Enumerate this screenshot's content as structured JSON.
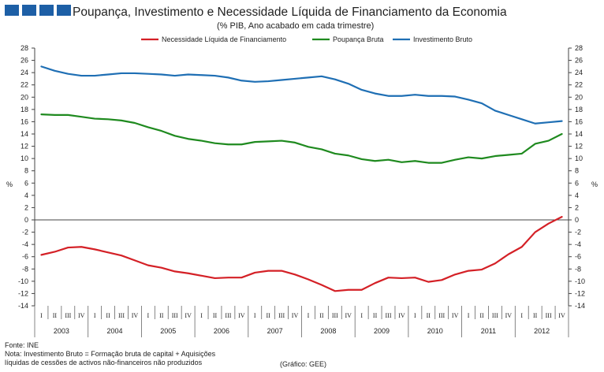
{
  "header": {
    "title": "Poupança, Investimento e Necessidade Líquida de Financiamento da Economia",
    "subtitle": "(% PIB, Ano acabado em cada trimestre)"
  },
  "footer": {
    "source": "Fonte: INE",
    "note_line1": "Nota: Investimento Bruto = Formação bruta de capital + Aquisições",
    "note_line2": "líquidas de cessões de activos não-financeiros não produzidos",
    "credit": "(Gráfico: GEE)"
  },
  "colors": {
    "brand_blocks": "#1d5fa6",
    "necessidade": "#d42026",
    "poupanca": "#1f8a1f",
    "investimento": "#1f6fb4"
  },
  "chart_data": {
    "type": "line",
    "title": "Poupança, Investimento e Necessidade Líquida de Financiamento da Economia",
    "subtitle": "(% PIB, Ano acabado em cada trimestre)",
    "ylabel": "%",
    "ylim": [
      -14,
      28
    ],
    "ytick_step": 2,
    "yticks": [
      "-14",
      "-12",
      "-10",
      "-8",
      "-6",
      "-4",
      "-2",
      "0",
      "2",
      "4",
      "6",
      "8",
      "10",
      "12",
      "14",
      "16",
      "18",
      "20",
      "22",
      "24",
      "26",
      "28"
    ],
    "legend_position": "top-center",
    "quarter_labels": [
      "I",
      "II",
      "III",
      "IV",
      "I",
      "II",
      "III",
      "IV",
      "I",
      "II",
      "III",
      "IV",
      "I",
      "II",
      "III",
      "IV",
      "I",
      "II",
      "III",
      "IV",
      "I",
      "II",
      "III",
      "IV",
      "I",
      "II",
      "III",
      "IV",
      "I",
      "II",
      "III",
      "IV",
      "I",
      "II",
      "III",
      "IV",
      "I",
      "II",
      "III",
      "IV"
    ],
    "years": [
      "2003",
      "2004",
      "2005",
      "2006",
      "2007",
      "2008",
      "2009",
      "2010",
      "2011",
      "2012"
    ],
    "series": [
      {
        "name": "Necessidade Líquida de Financiamento",
        "color_key": "necessidade",
        "values": [
          -5.7,
          -5.2,
          -4.5,
          -4.4,
          -4.8,
          -5.3,
          -5.8,
          -6.6,
          -7.4,
          -7.8,
          -8.4,
          -8.7,
          -9.1,
          -9.5,
          -9.4,
          -9.4,
          -8.6,
          -8.3,
          -8.3,
          -8.9,
          -9.7,
          -10.6,
          -11.6,
          -11.4,
          -11.4,
          -10.3,
          -9.4,
          -9.5,
          -9.4,
          -10.1,
          -9.8,
          -8.9,
          -8.3,
          -8.1,
          -7.1,
          -5.6,
          -4.4,
          -2.0,
          -0.6,
          0.5
        ]
      },
      {
        "name": "Poupança Bruta",
        "color_key": "poupanca",
        "values": [
          17.2,
          17.1,
          17.1,
          16.8,
          16.5,
          16.4,
          16.2,
          15.8,
          15.1,
          14.5,
          13.7,
          13.2,
          12.9,
          12.5,
          12.3,
          12.3,
          12.7,
          12.8,
          12.9,
          12.6,
          11.9,
          11.5,
          10.8,
          10.5,
          9.9,
          9.6,
          9.8,
          9.4,
          9.6,
          9.3,
          9.3,
          9.8,
          10.2,
          10.0,
          10.4,
          10.6,
          10.8,
          12.4,
          12.9,
          14.0
        ]
      },
      {
        "name": "Investimento Bruto",
        "color_key": "investimento",
        "values": [
          25.0,
          24.3,
          23.8,
          23.5,
          23.5,
          23.7,
          23.9,
          23.9,
          23.8,
          23.7,
          23.5,
          23.7,
          23.6,
          23.5,
          23.2,
          22.7,
          22.5,
          22.6,
          22.8,
          23.0,
          23.2,
          23.4,
          22.9,
          22.2,
          21.2,
          20.6,
          20.2,
          20.2,
          20.4,
          20.2,
          20.2,
          20.1,
          19.6,
          19.0,
          17.8,
          17.1,
          16.4,
          15.7,
          15.9,
          16.1
        ]
      }
    ]
  }
}
